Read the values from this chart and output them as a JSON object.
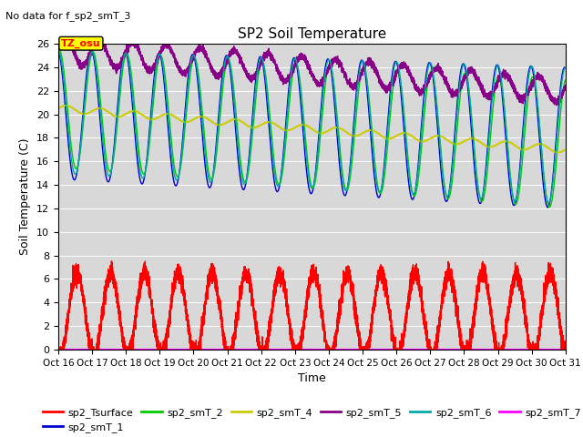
{
  "title": "SP2 Soil Temperature",
  "subtitle": "No data for f_sp2_smT_3",
  "xlabel": "Time",
  "ylabel": "Soil Temperature (C)",
  "ylim": [
    0,
    26
  ],
  "xlim": [
    0,
    360
  ],
  "tz_label": "TZ_osu",
  "background_color": "#d8d8d8",
  "x_tick_labels": [
    "Oct 16",
    "Oct 17",
    "Oct 18",
    "Oct 19",
    "Oct 20",
    "Oct 21",
    "Oct 22",
    "Oct 23",
    "Oct 24",
    "Oct 25",
    "Oct 26",
    "Oct 27",
    "Oct 28",
    "Oct 29",
    "Oct 30",
    "Oct 31"
  ],
  "series": {
    "sp2_Tsurface": {
      "color": "#ff0000",
      "lw": 1.0
    },
    "sp2_smT_1": {
      "color": "#0000cc",
      "lw": 1.0
    },
    "sp2_smT_2": {
      "color": "#00cc00",
      "lw": 1.0
    },
    "sp2_smT_4": {
      "color": "#cccc00",
      "lw": 1.5
    },
    "sp2_smT_5": {
      "color": "#880088",
      "lw": 1.0
    },
    "sp2_smT_6": {
      "color": "#00aaaa",
      "lw": 1.0
    },
    "sp2_smT_7": {
      "color": "#ff00ff",
      "lw": 1.5
    }
  }
}
